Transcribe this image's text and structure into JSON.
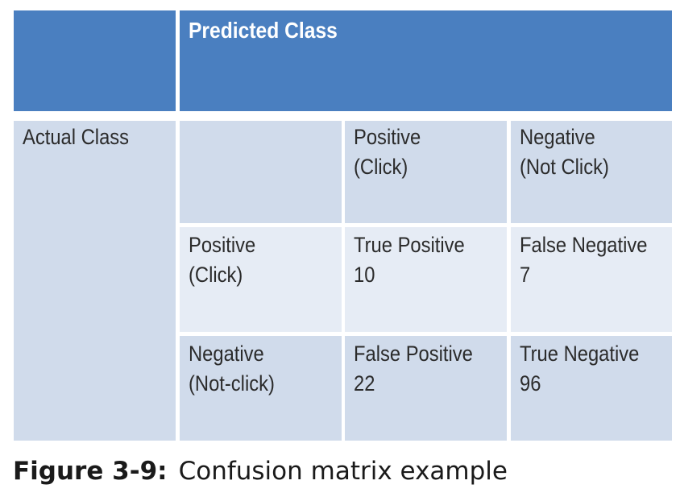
{
  "table": {
    "predicted_header": "Predicted Class",
    "actual_header": "Actual Class",
    "column_headers": [
      {
        "line1": "Positive",
        "line2": "(Click)"
      },
      {
        "line1": "Negative",
        "line2": "(Not Click)"
      }
    ],
    "row_headers": [
      {
        "line1": "Positive",
        "line2": "(Click)"
      },
      {
        "line1": "Negative",
        "line2": "(Not-click)"
      }
    ],
    "cells": [
      [
        {
          "label": "True Positive",
          "value": "10"
        },
        {
          "label": "False Negative",
          "value": "7"
        }
      ],
      [
        {
          "label": "False Positive",
          "value": "22"
        },
        {
          "label": "True Negative",
          "value": "96"
        }
      ]
    ]
  },
  "caption": {
    "label": "Figure 3-9:",
    "text": "Confusion matrix example"
  },
  "colors": {
    "header_blue": "#4a7fc0",
    "cell_dark": "#d0dbeb",
    "cell_light": "#e6ecf5"
  }
}
